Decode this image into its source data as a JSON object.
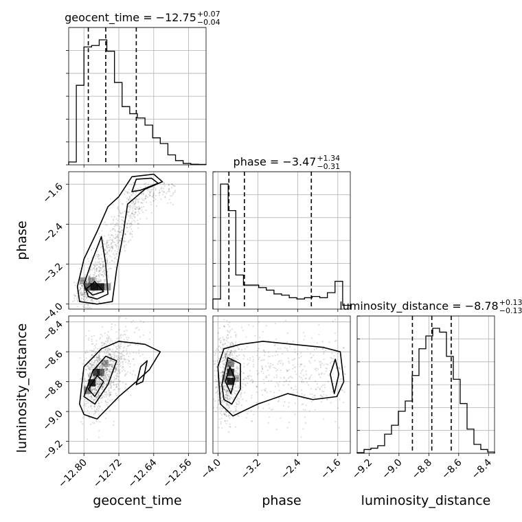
{
  "chart_data": {
    "type": "corner",
    "parameters": [
      "geocent_time",
      "phase",
      "luminosity_distance"
    ],
    "titles": [
      {
        "param": "geocent_time",
        "prefix": "geocent_time = ",
        "median": "−12.75",
        "upper": "+0.07",
        "lower": "−0.04"
      },
      {
        "param": "phase",
        "prefix": "phase = ",
        "median": "−3.47",
        "upper": "+1.34",
        "lower": "−0.31"
      },
      {
        "param": "luminosity_distance",
        "prefix": "luminosity_distance = ",
        "median": "−8.78",
        "upper": "+0.13",
        "lower": "−0.13"
      }
    ],
    "axis_labels": {
      "geocent_time": "geocent_time",
      "phase": "phase",
      "luminosity_distance": "luminosity_distance"
    },
    "ranges": {
      "geocent_time": [
        -12.835,
        -12.52
      ],
      "phase": [
        -4.1,
        -1.35
      ],
      "luminosity_distance": [
        -9.28,
        -8.36
      ]
    },
    "ticks": {
      "geocent_time": [
        {
          "v": -12.8,
          "label": "−12.80"
        },
        {
          "v": -12.72,
          "label": "−12.72"
        },
        {
          "v": -12.64,
          "label": "−12.64"
        },
        {
          "v": -12.56,
          "label": "−12.56"
        }
      ],
      "phase": [
        {
          "v": -4.0,
          "label": "−4.0"
        },
        {
          "v": -3.2,
          "label": "−3.2"
        },
        {
          "v": -2.4,
          "label": "−2.4"
        },
        {
          "v": -1.6,
          "label": "−1.6"
        }
      ],
      "luminosity_distance": [
        {
          "v": -9.2,
          "label": "−9.2"
        },
        {
          "v": -9.0,
          "label": "−9.0"
        },
        {
          "v": -8.8,
          "label": "−8.8"
        },
        {
          "v": -8.6,
          "label": "−8.6"
        },
        {
          "v": -8.4,
          "label": "−8.4"
        }
      ]
    },
    "quantiles": {
      "geocent_time": [
        -12.79,
        -12.75,
        -12.68
      ],
      "phase": [
        -3.78,
        -3.47,
        -2.13
      ],
      "luminosity_distance": [
        -8.91,
        -8.78,
        -8.65
      ]
    },
    "histograms": {
      "geocent_time": [
        0.02,
        0.56,
        0.83,
        0.84,
        0.88,
        0.8,
        0.58,
        0.41,
        0.36,
        0.33,
        0.28,
        0.19,
        0.15,
        0.07,
        0.03,
        0.01,
        0.004,
        0.003
      ],
      "phase": [
        0.08,
        0.99,
        0.78,
        0.27,
        0.19,
        0.19,
        0.17,
        0.15,
        0.12,
        0.11,
        0.09,
        0.08,
        0.09,
        0.1,
        0.09,
        0.13,
        0.22,
        0.03
      ],
      "luminosity_distance": [
        0.005,
        0.03,
        0.04,
        0.06,
        0.15,
        0.22,
        0.33,
        0.41,
        0.61,
        0.82,
        0.92,
        0.98,
        0.95,
        0.76,
        0.58,
        0.39,
        0.19,
        0.07,
        0.03,
        0.01
      ]
    },
    "grid": true
  }
}
